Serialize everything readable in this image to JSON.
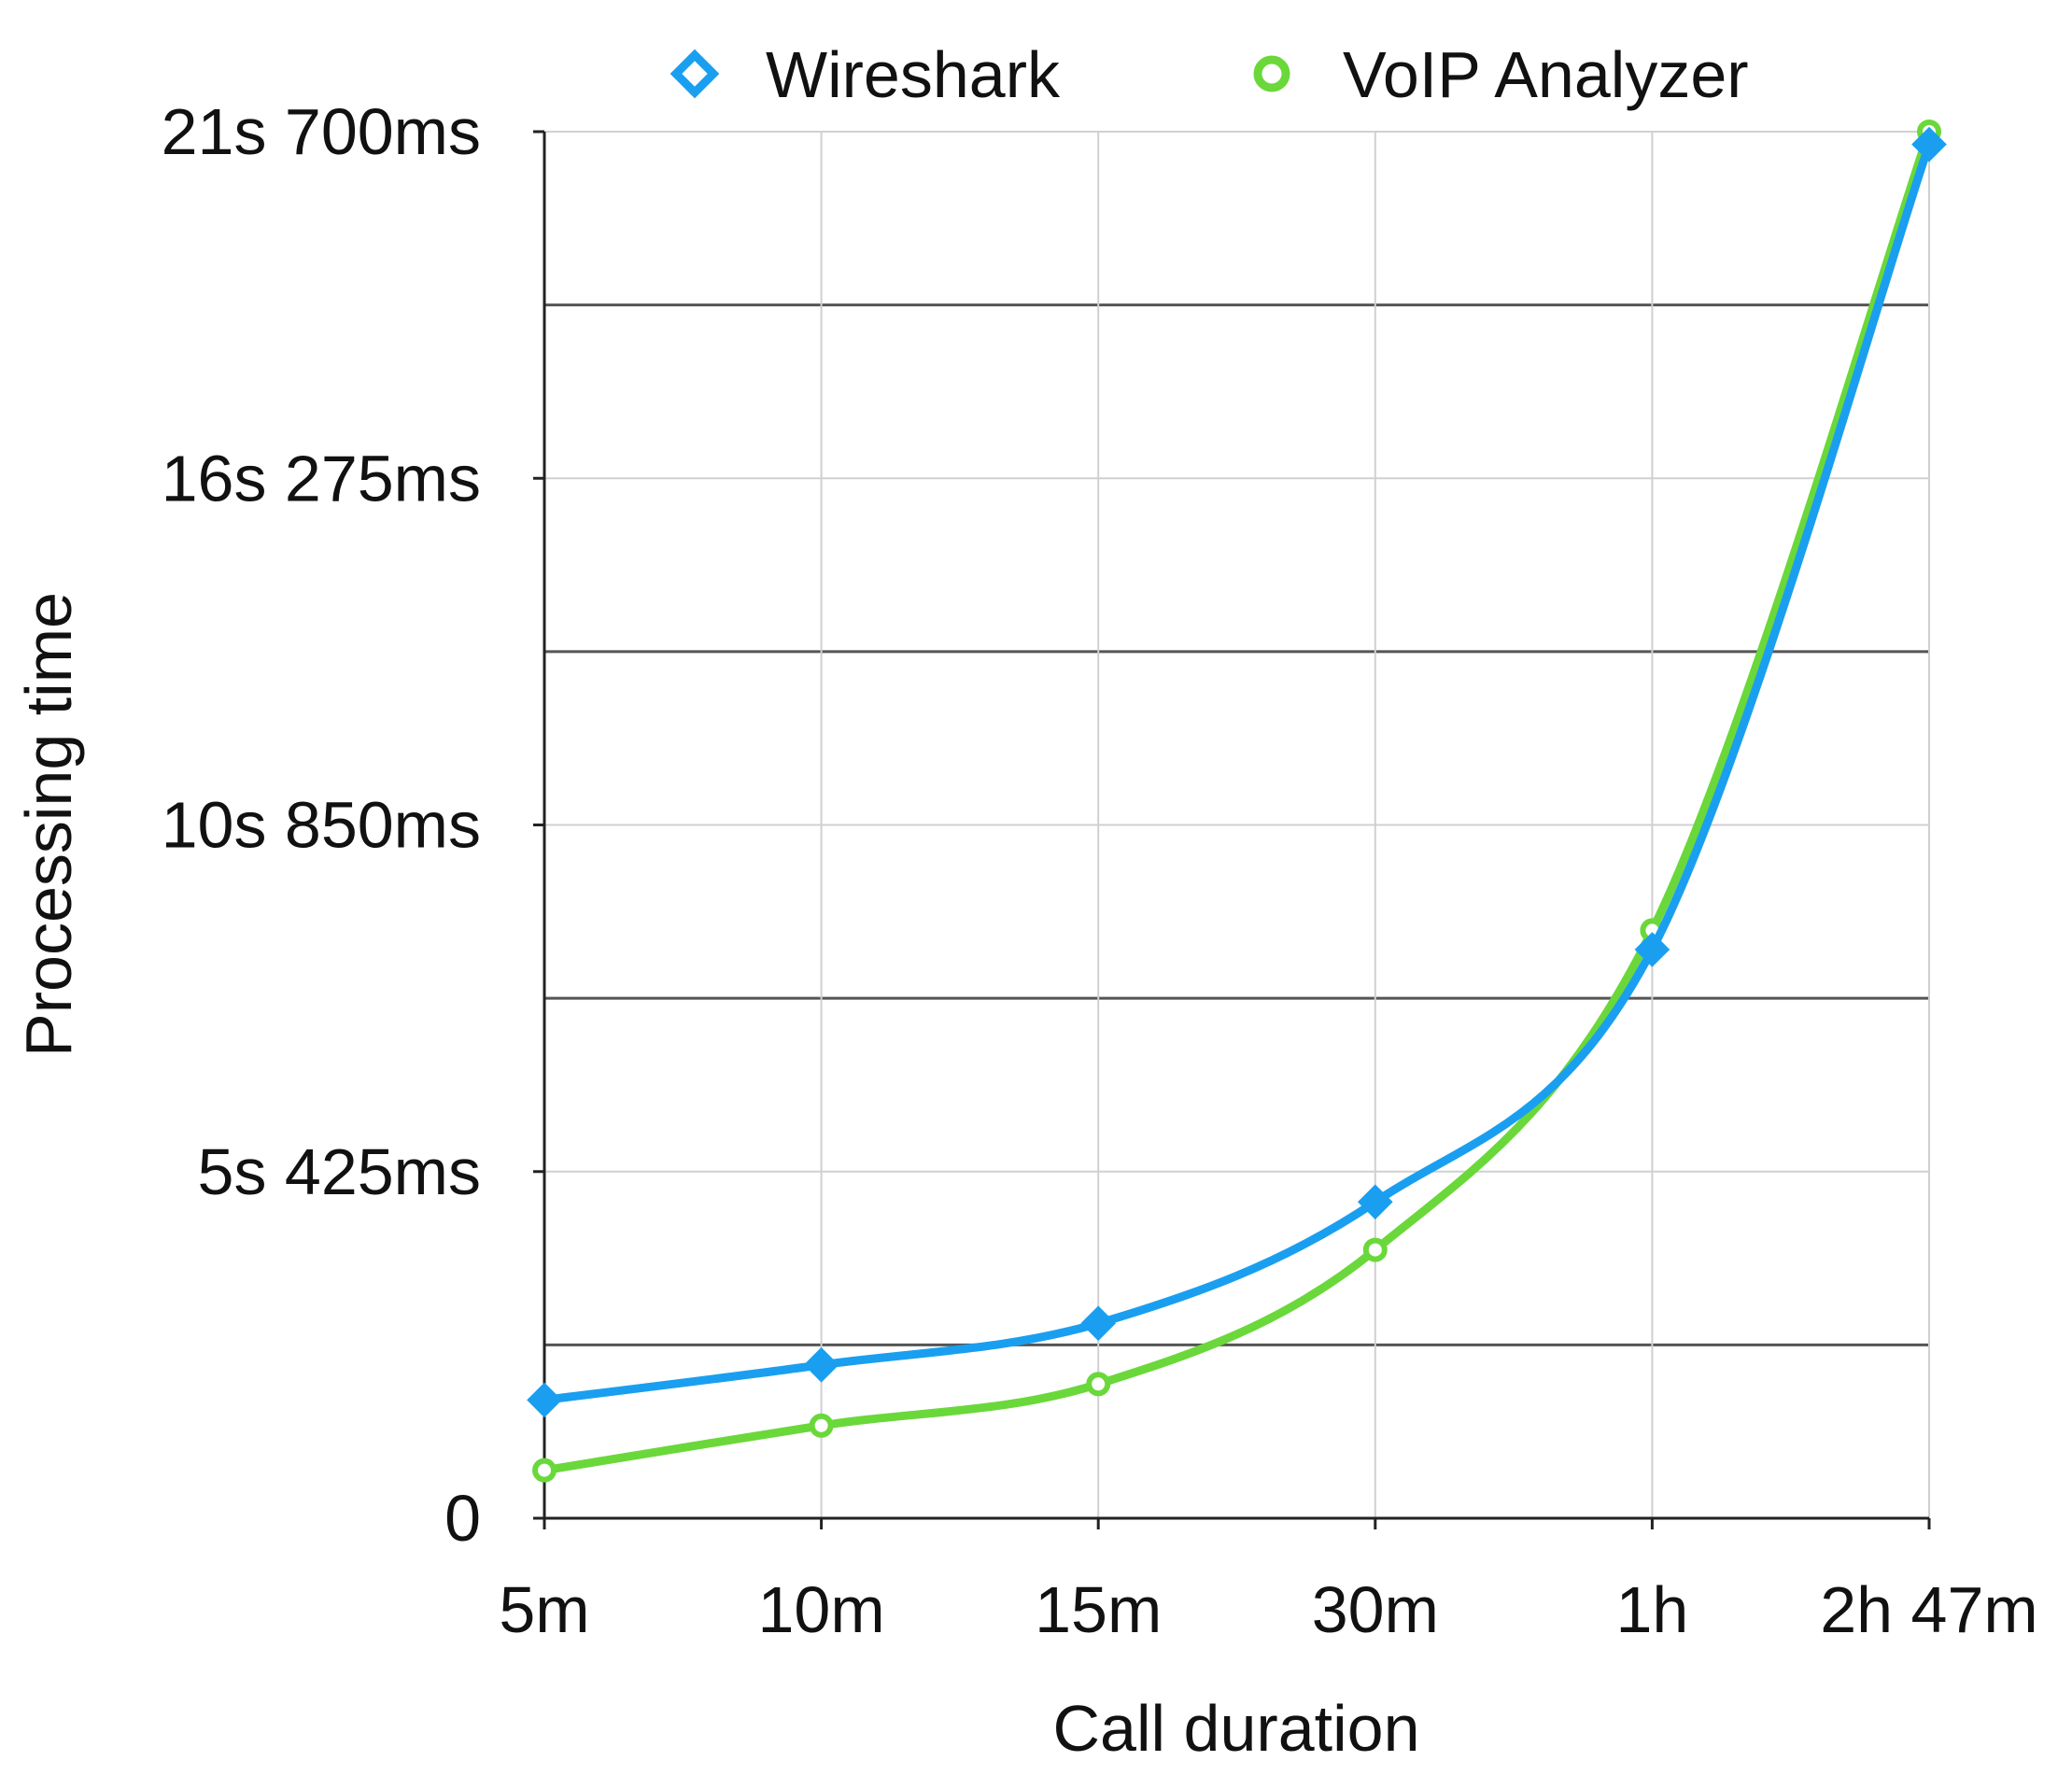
{
  "chart_data": {
    "type": "line",
    "title": "",
    "xlabel": "Call duration",
    "ylabel": "Processing time",
    "categories": [
      "5m",
      "10m",
      "15m",
      "30m",
      "1h",
      "2h 47m"
    ],
    "y_tick_values_s": [
      0,
      5.425,
      10.85,
      16.275,
      21.7
    ],
    "y_tick_labels": [
      "0",
      "5s 425ms",
      "10s 850ms",
      "16s 275ms",
      "21s 700ms"
    ],
    "ylim_s": [
      0,
      21.7
    ],
    "grid": true,
    "legend_position": "top",
    "series": [
      {
        "name": "Wireshark",
        "marker": "diamond",
        "color": "#1a9ff0",
        "values_s": [
          1.85,
          2.4,
          3.05,
          4.95,
          8.9,
          21.5
        ]
      },
      {
        "name": "VoIP Analyzer",
        "marker": "circle",
        "color": "#6ad83a",
        "values_s": [
          0.75,
          1.45,
          2.1,
          4.2,
          9.2,
          21.7
        ]
      }
    ]
  }
}
